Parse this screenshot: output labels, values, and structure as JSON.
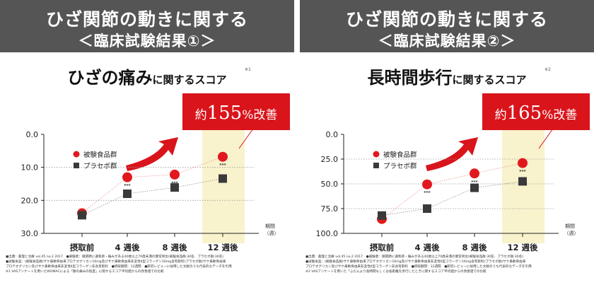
{
  "colors": {
    "header_bg": "#555555",
    "red": "#e1191e",
    "grey": "#3a3a3a",
    "highlight": "#f8f3cc",
    "badge": "#d9141b"
  },
  "panels": [
    {
      "header_line1": "ひざ関節の動きに関する",
      "header_line2": "＜臨床試験結果①＞",
      "title_big": "ひざの痛み",
      "title_small": "に関するスコア",
      "title_note": "※1",
      "badge_prefix": "約",
      "badge_number": "155",
      "badge_suffix": "%改善",
      "footnotes": [
        "●出典：薬理と治療 vol.45 no.2 2017　●被験者：膝関節に違和感・痛みがある40歳以上70歳未満の健常男女(被験食品群:30名、プラセボ群:30名)",
        "●試験食品：(被験食品群)サケ鼻軟骨由来プロテオグリカン16mg及びサケ鼻軟骨由来非変性II型コラーゲン16mg含有飲料(プラセボ群)サケ鼻軟骨由来",
        "プロテオグリカン及びサケ鼻軟骨由来非変性II型コラーゲン非含有飲料　●摂取期間：12週間　●研究レビューに採用した文献のうち代表的なデータを引用",
        "※1 VASアンケートを用いたWOMACによる「膝の痛みの程度」に関するスコア平均値からの改善値での比較"
      ],
      "chart_data": {
        "type": "line",
        "categories": [
          "摂取前",
          "4 週後",
          "8 週後",
          "12 週後"
        ],
        "x_unit": "期間\n（週）",
        "y_axis": "inverted",
        "ylim": [
          0,
          30
        ],
        "yticks": [
          "0.0",
          "10.0",
          "20.0",
          "30.0"
        ],
        "ytick_values": [
          0,
          10,
          20,
          30
        ],
        "grid": "dotted horizontal",
        "highlight_category": "12 週後",
        "legend": "top-left",
        "series": [
          {
            "name": "被験食品群",
            "marker": "circle",
            "color": "#e1191e",
            "values": [
              23.9,
              13.0,
              12.2,
              6.8
            ],
            "annotations": [
              "",
              "***",
              "***",
              "***"
            ]
          },
          {
            "name": "プラセボ群",
            "marker": "square",
            "color": "#3a3a3a",
            "values": [
              24.5,
              18.0,
              16.1,
              13.4
            ],
            "annotations": [
              "",
              "",
              "",
              ""
            ]
          }
        ]
      }
    },
    {
      "header_line1": "ひざ関節の動きに関する",
      "header_line2": "＜臨床試験結果②＞",
      "title_big": "長時間歩行",
      "title_small": "に関するスコア",
      "title_note": "※2",
      "badge_prefix": "約",
      "badge_number": "165",
      "badge_suffix": "%改善",
      "footnotes": [
        "●出典：薬理と治療 vol.45 no.2 2017　●被験者：膝関節に違和感・痛みがある40歳以上70歳未満の健常男女(被験食品群:30名、プラセボ群:30名)",
        "●試験食品：(被験食品群)サケ鼻軟骨由来プロテオグリカン16mg及びサケ鼻軟骨由来非変性II型コラーゲン16mg含有飲料(プラセボ群)サケ鼻軟骨由来",
        "プロテオグリカン及びサケ鼻軟骨由来非変性II型コラーゲン非含有飲料　●摂取期間：12週間　●研究レビューに採用した文献のうち代表的なデータを引用",
        "※2 VASアンケートを用いた「ふだんより長時間もしくは長距離を歩行したときに関するスコア平均値からの改善値での比較"
      ],
      "chart_data": {
        "type": "line",
        "categories": [
          "摂取前",
          "4 週後",
          "8 週後",
          "12 週後"
        ],
        "x_unit": "期間\n（週）",
        "y_axis": "inverted",
        "ylim": [
          0,
          100
        ],
        "yticks": [
          "0.0",
          "25.0",
          "50.0",
          "75.0",
          "100.0"
        ],
        "ytick_values": [
          0,
          25,
          50,
          75,
          100
        ],
        "grid": "dotted horizontal",
        "highlight_category": "12 週後",
        "legend": "top-left",
        "series": [
          {
            "name": "被験食品群",
            "marker": "circle",
            "color": "#e1191e",
            "values": [
              85.5,
              50.5,
              39.5,
              29.0
            ],
            "annotations": [
              "",
              "***",
              "***",
              "***"
            ]
          },
          {
            "name": "プラセボ群",
            "marker": "square",
            "color": "#3a3a3a",
            "values": [
              82.0,
              75.0,
              54.0,
              47.5
            ],
            "annotations": [
              "",
              "",
              "",
              ""
            ]
          }
        ]
      }
    }
  ]
}
